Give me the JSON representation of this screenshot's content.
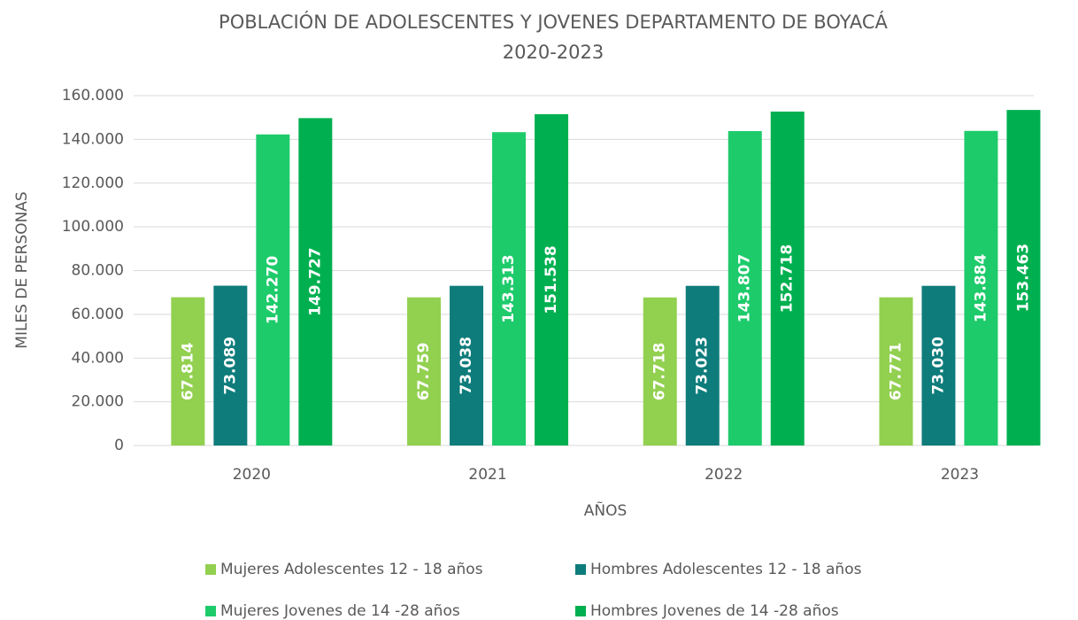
{
  "chart_data": {
    "type": "bar",
    "title": [
      "POBLACIÓN DE ADOLESCENTES Y JOVENES  DEPARTAMENTO DE BOYACÁ",
      "2020-2023"
    ],
    "x_label": "AÑOS",
    "y_label": "MILES DE PERSONAS",
    "categories": [
      "2020",
      "2021",
      "2022",
      "2023"
    ],
    "series": [
      {
        "name": "Mujeres Adolescentes 12 - 18 años",
        "color": "#92d050",
        "values": [
          67814,
          67759,
          67718,
          67771
        ],
        "value_labels": [
          "67.814",
          "67.759",
          "67.718",
          "67.771"
        ]
      },
      {
        "name": "Hombres Adolescentes 12 - 18 años",
        "color": "#0e7c7b",
        "values": [
          73089,
          73038,
          73023,
          73030
        ],
        "value_labels": [
          "73.089",
          "73.038",
          "73.023",
          "73.030"
        ]
      },
      {
        "name": "Mujeres Jovenes de 14 -28 años",
        "color": "#1ecb6b",
        "values": [
          142270,
          143313,
          143807,
          143884
        ],
        "value_labels": [
          "142.270",
          "143.313",
          "143.807",
          "143.884"
        ]
      },
      {
        "name": "Hombres Jovenes de 14 -28 años",
        "color": "#00b050",
        "values": [
          149727,
          151538,
          152718,
          153463
        ],
        "value_labels": [
          "149.727",
          "151.538",
          "152.718",
          "153.463"
        ]
      }
    ],
    "ylim": [
      0,
      160000
    ],
    "yticks": [
      0,
      {
        "value": 20000,
        "label": "20.000"
      },
      {
        "value": 40000,
        "label": "40.000"
      },
      {
        "value": 60000,
        "label": "60.000"
      },
      {
        "value": 80000,
        "label": "80.000"
      },
      {
        "value": 100000,
        "label": "100.000"
      },
      {
        "value": 120000,
        "label": "120.000"
      },
      {
        "value": 140000,
        "label": "140.000"
      },
      {
        "value": 160000,
        "label": "160.000"
      }
    ],
    "grid": true,
    "legend": "bottom"
  }
}
